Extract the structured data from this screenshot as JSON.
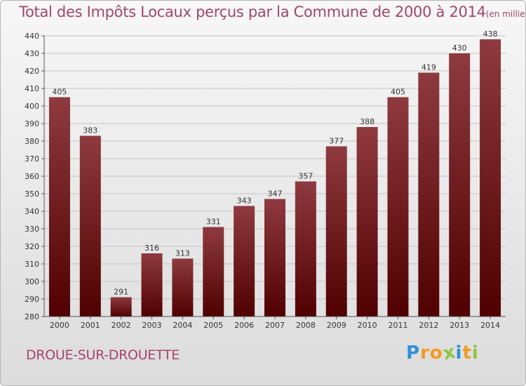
{
  "chart_data": {
    "type": "bar",
    "title": "Total des Impôts Locaux perçus par la Commune de 2000 à 2014",
    "subtitle": "(en milliers d'€)",
    "categories": [
      "2000",
      "2001",
      "2002",
      "2003",
      "2004",
      "2005",
      "2006",
      "2007",
      "2008",
      "2009",
      "2010",
      "2011",
      "2012",
      "2013",
      "2014"
    ],
    "values": [
      405,
      383,
      291,
      316,
      313,
      331,
      343,
      347,
      357,
      377,
      388,
      405,
      419,
      430,
      438
    ],
    "ylim": [
      280,
      440
    ],
    "yticks": [
      280,
      290,
      300,
      310,
      320,
      330,
      340,
      350,
      360,
      370,
      380,
      390,
      400,
      410,
      420,
      430,
      440
    ],
    "grid": true,
    "bar_color_top": "#8e3a3f",
    "bar_color_bottom": "#500000"
  },
  "footer": {
    "commune": "DROUE-SUR-DROUETTE",
    "logo_letters": [
      {
        "ch": "P",
        "color": "#2f8fd6"
      },
      {
        "ch": "r",
        "color": "#f29a1f"
      },
      {
        "ch": "o",
        "color": "#f29a1f"
      },
      {
        "ch": "x",
        "color": "#8dc63f"
      },
      {
        "ch": "i",
        "color": "#2f8fd6"
      },
      {
        "ch": "t",
        "color": "#f29a1f"
      },
      {
        "ch": "i",
        "color": "#8dc63f"
      }
    ]
  }
}
